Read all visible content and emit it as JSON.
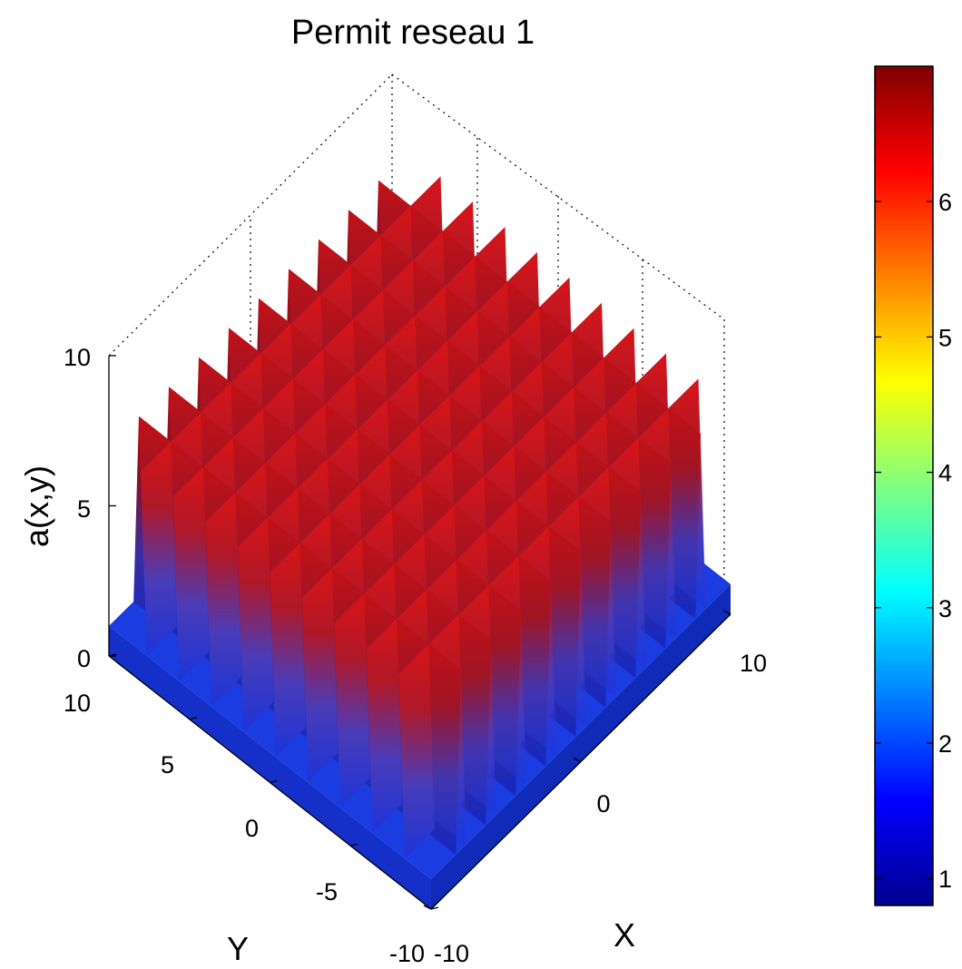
{
  "chart_data": {
    "type": "surface3d",
    "title": "Permit reseau 1",
    "xlabel": "X",
    "ylabel": "Y",
    "zlabel": "a(x,y)",
    "xlim": [
      -10,
      10
    ],
    "ylim": [
      -10,
      10
    ],
    "zlim": [
      0,
      10
    ],
    "x_ticks": [
      "-10",
      "0",
      "10"
    ],
    "y_ticks": [
      "-10",
      "-5",
      "0",
      "5",
      "10"
    ],
    "z_ticks": [
      "0",
      "5",
      "10"
    ],
    "colorbar": {
      "colormap": "jet",
      "range": [
        0.8,
        7
      ],
      "ticks": [
        "1",
        "2",
        "3",
        "4",
        "5",
        "6"
      ],
      "colors": [
        "#00008f",
        "#0000ff",
        "#0080ff",
        "#00ffff",
        "#80ff80",
        "#ffff00",
        "#ff8000",
        "#ff0000",
        "#800000"
      ]
    },
    "surface": {
      "description_values": {
        "base_value": 1,
        "wall_value": 7,
        "wall_positions_x": [
          -8,
          -6,
          -4,
          -2,
          0,
          2,
          4,
          6,
          8
        ],
        "wall_positions_y": [
          -8,
          -6,
          -4,
          -2,
          0,
          2,
          4,
          6,
          8
        ]
      },
      "base_color": "#1a3ce0",
      "wall_top_color": "#e01010",
      "wall_bottom_color": "#2a30d0"
    },
    "grid": false
  }
}
